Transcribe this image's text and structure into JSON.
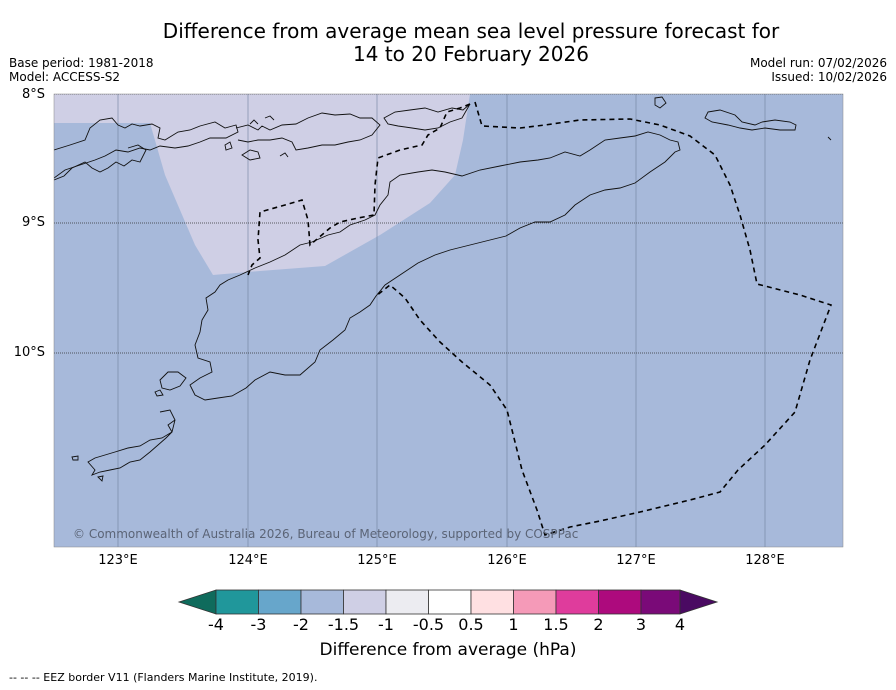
{
  "title_line1": "Difference from average mean sea level pressure forecast for",
  "title_line2": "14 to 20 February 2026",
  "base_period": "Base period: 1981-2018",
  "model": "Model: ACCESS-S2",
  "model_run": "Model run: 07/02/2026",
  "issued": "Issued: 10/02/2026",
  "lat_ticks": [
    "8°S",
    "9°S",
    "10°S"
  ],
  "lon_ticks": [
    "123°E",
    "124°E",
    "125°E",
    "126°E",
    "127°E",
    "128°E"
  ],
  "credit": "© Commonwealth of Australia 2026, Bureau of Meteorology, supported by COSPPac",
  "colorbar": {
    "title": "Difference from average (hPa)",
    "labels": [
      "-4",
      "-3",
      "-2",
      "-1.5",
      "-1",
      "-0.5",
      "0.5",
      "1",
      "1.5",
      "2",
      "3",
      "4"
    ],
    "colors": [
      "#0f6b5c",
      "#20979b",
      "#67a6cb",
      "#a7b9da",
      "#cfcfe5",
      "#ececf1",
      "#ffffff",
      "#ffe0e2",
      "#f59ab8",
      "#df3c9c",
      "#ad0a7d",
      "#7a0a78",
      "#4a0a62"
    ]
  },
  "legend_note": "--  --  -- EEZ border V11 (Flanders Marine Institute, 2019).",
  "colors": {
    "sea_anomaly": "#a7b9da",
    "light_anomaly": "#cfcfe5"
  }
}
